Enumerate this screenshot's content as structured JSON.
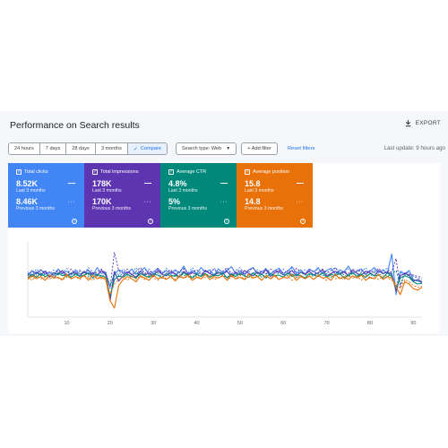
{
  "header": {
    "title": "Performance on Search results",
    "export_label": "EXPORT"
  },
  "filters": {
    "date_ranges": [
      "24 hours",
      "7 days",
      "28 days",
      "3 months"
    ],
    "compare_label": "Compare",
    "search_type": "Search type: Web",
    "add_filter": "+ Add filter",
    "reset_filters": "Reset filters",
    "last_update": "Last update: 9 hours ago"
  },
  "metrics": [
    {
      "name": "Total clicks",
      "current": "8.52K",
      "current_label": "Last 3 months",
      "previous": "8.46K",
      "previous_label": "Previous 3 months",
      "color": "#4285f4"
    },
    {
      "name": "Total impressions",
      "current": "178K",
      "current_label": "Last 3 months",
      "previous": "170K",
      "previous_label": "Previous 3 months",
      "color": "#5e35b1"
    },
    {
      "name": "Average CTR",
      "current": "4.8%",
      "current_label": "Last 3 months",
      "previous": "5%",
      "previous_label": "Previous 3 months",
      "color": "#00897b"
    },
    {
      "name": "Average position",
      "current": "15.8",
      "current_label": "Last 3 months",
      "previous": "14.8",
      "previous_label": "Previous 3 months",
      "color": "#e8710a"
    }
  ],
  "chart_data": {
    "type": "line",
    "x_ticks": [
      "10",
      "20",
      "30",
      "40",
      "50",
      "60",
      "70",
      "80",
      "90"
    ],
    "xlim": [
      1,
      92
    ],
    "ylim": [
      0,
      100
    ],
    "grid": false,
    "series": [
      {
        "color": "#4285f4",
        "dashed": false,
        "values": [
          55,
          62,
          58,
          63,
          57,
          60,
          55,
          64,
          58,
          61,
          56,
          63,
          57,
          59,
          62,
          55,
          66,
          58,
          60,
          25,
          57,
          63,
          60,
          58,
          64,
          57,
          61,
          66,
          56,
          60,
          65,
          58,
          62,
          57,
          63,
          59,
          68,
          57,
          62,
          58,
          66,
          60,
          63,
          56,
          64,
          59,
          62,
          67,
          58,
          61,
          57,
          63,
          66,
          58,
          60,
          64,
          57,
          62,
          65,
          58,
          61,
          67,
          58,
          63,
          57,
          64,
          60,
          66,
          58,
          62,
          65,
          57,
          63,
          60,
          68,
          58,
          62,
          64,
          57,
          61,
          66,
          59,
          63,
          58,
          84,
          30,
          60,
          57,
          62,
          50,
          48,
          46
        ]
      },
      {
        "color": "#4285f4",
        "dashed": true,
        "values": [
          60,
          56,
          64,
          59,
          62,
          57,
          63,
          60,
          58,
          65,
          57,
          61,
          63,
          58,
          66,
          60,
          57,
          62,
          59,
          38,
          62,
          56,
          64,
          60,
          58,
          66,
          57,
          62,
          64,
          58,
          61,
          57,
          65,
          60,
          62,
          56,
          64,
          59,
          66,
          58,
          61,
          63,
          57,
          65,
          60,
          58,
          64,
          56,
          62,
          66,
          58,
          61,
          57,
          63,
          60,
          65,
          58,
          62,
          59,
          64,
          57,
          66,
          60,
          58,
          63,
          61,
          56,
          64,
          60,
          62,
          57,
          66,
          59,
          61,
          64,
          58,
          62,
          60,
          66,
          57,
          63,
          59,
          61,
          65,
          58,
          40,
          62,
          58,
          60,
          54,
          52,
          50
        ]
      },
      {
        "color": "#5e35b1",
        "dashed": false,
        "values": [
          58,
          54,
          60,
          56,
          61,
          53,
          59,
          57,
          62,
          55,
          58,
          60,
          54,
          61,
          57,
          59,
          55,
          62,
          56,
          22,
          60,
          48,
          55,
          60,
          57,
          53,
          61,
          56,
          59,
          54,
          62,
          57,
          55,
          60,
          58,
          53,
          61,
          56,
          59,
          57,
          54,
          62,
          58,
          55,
          60,
          57,
          61,
          54,
          59,
          56,
          62,
          58,
          55,
          60,
          57,
          63,
          54,
          59,
          61,
          56,
          58,
          62,
          55,
          60,
          57,
          61,
          56,
          59,
          63,
          55,
          58,
          61,
          57,
          60,
          55,
          62,
          58,
          56,
          61,
          59,
          55,
          62,
          58,
          60,
          57,
          35,
          55,
          58,
          56,
          48,
          50,
          47
        ]
      },
      {
        "color": "#5e35b1",
        "dashed": true,
        "values": [
          55,
          61,
          57,
          63,
          58,
          60,
          56,
          62,
          59,
          57,
          64,
          56,
          61,
          58,
          63,
          57,
          60,
          64,
          58,
          40,
          86,
          62,
          58,
          64,
          56,
          61,
          66,
          58,
          62,
          57,
          64,
          60,
          58,
          63,
          56,
          61,
          65,
          58,
          60,
          63,
          57,
          62,
          59,
          64,
          57,
          61,
          66,
          58,
          60,
          63,
          56,
          62,
          65,
          58,
          61,
          57,
          64,
          60,
          63,
          58,
          62,
          56,
          65,
          60,
          58,
          63,
          61,
          57,
          64,
          59,
          62,
          66,
          57,
          61,
          58,
          64,
          60,
          63,
          57,
          62,
          59,
          65,
          58,
          61,
          60,
          78,
          40,
          60,
          57,
          56,
          54,
          53
        ]
      },
      {
        "color": "#00897b",
        "dashed": false,
        "values": [
          52,
          57,
          53,
          58,
          54,
          56,
          52,
          59,
          55,
          57,
          53,
          58,
          54,
          56,
          59,
          52,
          57,
          55,
          53,
          28,
          50,
          55,
          53,
          57,
          54,
          52,
          58,
          55,
          53,
          57,
          56,
          52,
          58,
          54,
          56,
          53,
          59,
          55,
          52,
          57,
          54,
          58,
          53,
          56,
          55,
          59,
          52,
          57,
          54,
          58,
          55,
          53,
          59,
          54,
          57,
          52,
          58,
          55,
          56,
          53,
          59,
          54,
          57,
          55,
          52,
          58,
          56,
          54,
          59,
          53,
          57,
          55,
          58,
          52,
          56,
          59,
          54,
          57,
          53,
          58,
          55,
          56,
          52,
          59,
          54,
          38,
          52,
          55,
          53,
          47,
          44,
          45
        ]
      },
      {
        "color": "#00897b",
        "dashed": true,
        "values": [
          58,
          53,
          59,
          55,
          57,
          54,
          60,
          56,
          58,
          53,
          59,
          55,
          57,
          60,
          54,
          58,
          56,
          53,
          59,
          42,
          57,
          54,
          58,
          56,
          53,
          60,
          55,
          58,
          54,
          57,
          59,
          53,
          58,
          56,
          54,
          60,
          55,
          57,
          53,
          59,
          56,
          58,
          54,
          57,
          60,
          55,
          53,
          58,
          56,
          59,
          54,
          57,
          55,
          60,
          53,
          58,
          56,
          54,
          59,
          57,
          55,
          58,
          53,
          60,
          56,
          57,
          54,
          59,
          55,
          58,
          53,
          57,
          60,
          56,
          54,
          58,
          55,
          59,
          57,
          53,
          60,
          56,
          58,
          54,
          57,
          62,
          44,
          57,
          55,
          50,
          48,
          47
        ]
      },
      {
        "color": "#e8710a",
        "dashed": false,
        "values": [
          50,
          55,
          51,
          54,
          49,
          56,
          52,
          53,
          50,
          57,
          51,
          54,
          52,
          55,
          49,
          56,
          51,
          53,
          50,
          22,
          12,
          42,
          50,
          54,
          51,
          47,
          55,
          52,
          49,
          56,
          51,
          53,
          50,
          55,
          48,
          54,
          52,
          56,
          49,
          53,
          51,
          57,
          50,
          54,
          52,
          55,
          49,
          56,
          51,
          53,
          50,
          57,
          52,
          54,
          49,
          55,
          51,
          56,
          50,
          53,
          52,
          57,
          49,
          54,
          51,
          55,
          50,
          56,
          52,
          53,
          49,
          57,
          51,
          54,
          50,
          55,
          52,
          56,
          49,
          53,
          51,
          57,
          50,
          54,
          52,
          40,
          30,
          47,
          44,
          38,
          36,
          40
        ]
      },
      {
        "color": "#e8710a",
        "dashed": true,
        "values": [
          54,
          49,
          55,
          51,
          53,
          50,
          56,
          52,
          49,
          55,
          51,
          54,
          50,
          56,
          52,
          49,
          55,
          51,
          53,
          30,
          44,
          50,
          53,
          49,
          55,
          51,
          54,
          50,
          56,
          52,
          49,
          55,
          51,
          53,
          50,
          56,
          52,
          54,
          49,
          55,
          51,
          53,
          56,
          50,
          52,
          55,
          49,
          54,
          51,
          56,
          50,
          53,
          52,
          55,
          49,
          56,
          51,
          54,
          50,
          53,
          55,
          49,
          52,
          56,
          51,
          54,
          50,
          55,
          52,
          49,
          56,
          51,
          53,
          50,
          55,
          52,
          54,
          49,
          56,
          51,
          53,
          50,
          55,
          52,
          49,
          45,
          38,
          50,
          47,
          42,
          40,
          41
        ]
      }
    ]
  }
}
